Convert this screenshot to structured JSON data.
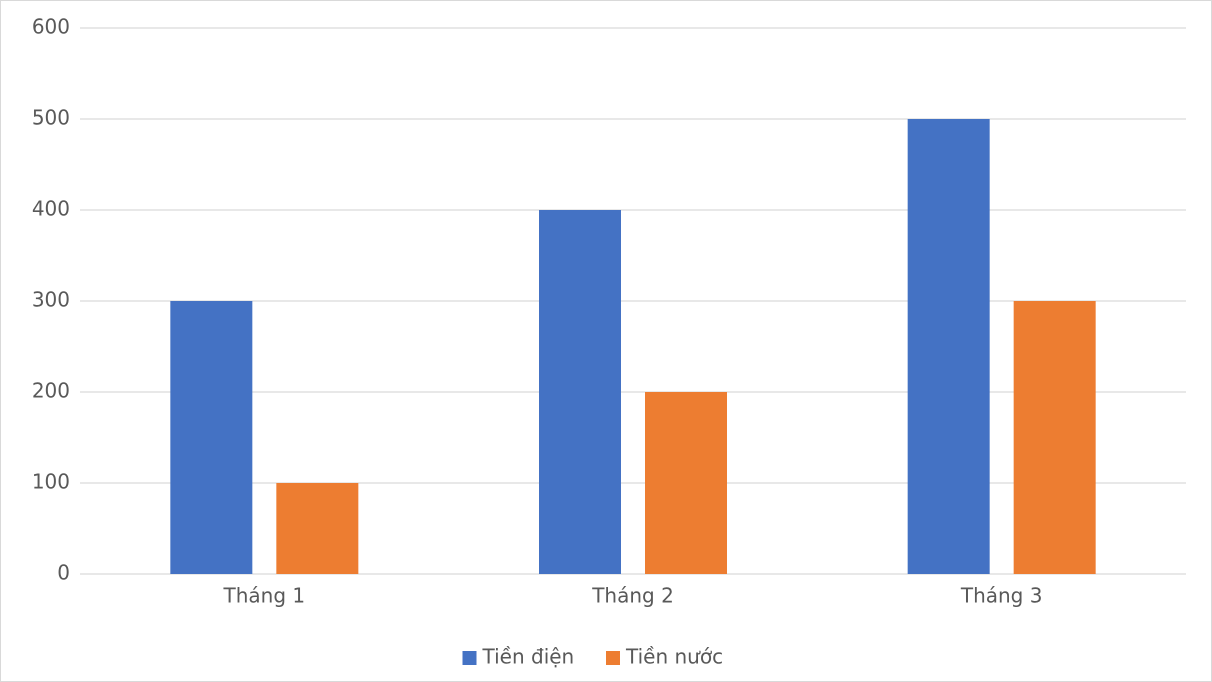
{
  "chart_data": {
    "type": "bar",
    "categories": [
      "Tháng 1",
      "Tháng 2",
      "Tháng 3"
    ],
    "series": [
      {
        "name": "Tiền điện",
        "color": "#4472c4",
        "values": [
          300,
          400,
          500
        ]
      },
      {
        "name": "Tiền nước",
        "color": "#ed7d31",
        "values": [
          100,
          200,
          300
        ]
      }
    ],
    "ylim": [
      0,
      600
    ],
    "yticks": [
      0,
      100,
      200,
      300,
      400,
      500,
      600
    ],
    "grid": true,
    "legend": "bottom"
  }
}
